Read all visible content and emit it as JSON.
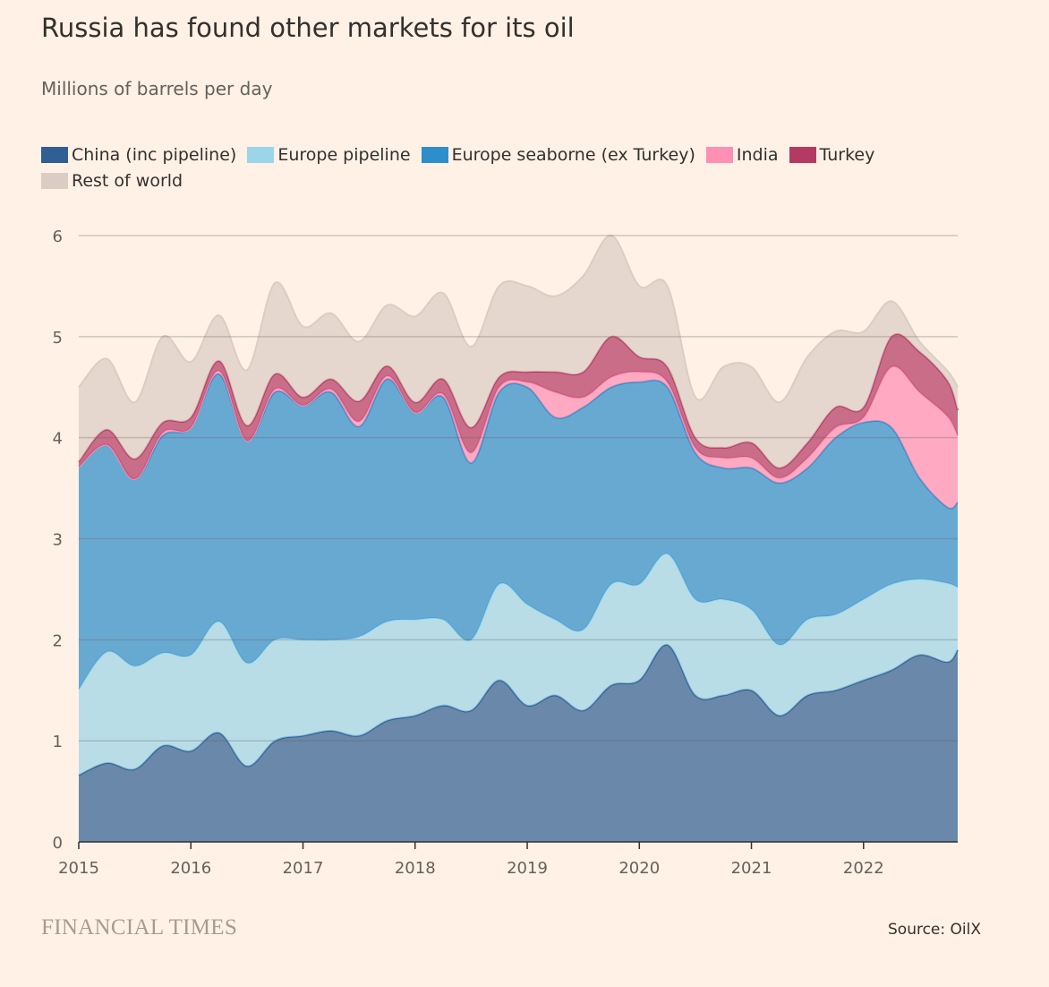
{
  "chart_data": {
    "type": "area",
    "stacked": true,
    "title": "Russia has found other markets for its oil",
    "subtitle": "Millions of barrels per day",
    "ylim": [
      0,
      6
    ],
    "y_ticks": [
      "0",
      "1",
      "2",
      "3",
      "4",
      "5",
      "6"
    ],
    "x_ticks": [
      "2015",
      "2016",
      "2017",
      "2018",
      "2019",
      "2020",
      "2021",
      "2022"
    ],
    "xlim": [
      2015.0,
      2022.84
    ],
    "x": [
      2015.0,
      2015.25,
      2015.5,
      2015.75,
      2016.0,
      2016.25,
      2016.5,
      2016.75,
      2017.0,
      2017.25,
      2017.5,
      2017.75,
      2018.0,
      2018.25,
      2018.5,
      2018.75,
      2019.0,
      2019.25,
      2019.5,
      2019.75,
      2020.0,
      2020.25,
      2020.5,
      2020.75,
      2021.0,
      2021.25,
      2021.5,
      2021.75,
      2022.0,
      2022.25,
      2022.5,
      2022.75,
      2022.84
    ],
    "series": [
      {
        "name": "China (inc pipeline)",
        "color": "#2f5f93",
        "values": [
          0.66,
          0.78,
          0.72,
          0.95,
          0.9,
          1.08,
          0.75,
          1.0,
          1.05,
          1.1,
          1.05,
          1.2,
          1.25,
          1.35,
          1.3,
          1.6,
          1.35,
          1.45,
          1.3,
          1.55,
          1.6,
          1.95,
          1.45,
          1.45,
          1.5,
          1.25,
          1.45,
          1.5,
          1.6,
          1.7,
          1.85,
          1.78,
          1.9
        ]
      },
      {
        "name": "Europe pipeline",
        "color": "#9dd5e8",
        "values": [
          0.85,
          1.1,
          1.02,
          0.92,
          0.95,
          1.1,
          1.02,
          1.0,
          0.95,
          0.9,
          0.98,
          0.98,
          0.95,
          0.85,
          0.7,
          0.95,
          1.0,
          0.75,
          0.8,
          1.0,
          0.95,
          0.9,
          0.95,
          0.95,
          0.8,
          0.7,
          0.75,
          0.75,
          0.8,
          0.85,
          0.75,
          0.78,
          0.62
        ]
      },
      {
        "name": "Europe seaborne (ex Turkey)",
        "color": "#2e8ecb",
        "values": [
          2.2,
          2.05,
          1.85,
          2.15,
          2.25,
          2.45,
          2.2,
          2.45,
          2.32,
          2.45,
          2.08,
          2.4,
          2.05,
          2.2,
          1.75,
          1.9,
          2.15,
          2.0,
          2.2,
          1.95,
          2.0,
          1.65,
          1.45,
          1.3,
          1.4,
          1.6,
          1.5,
          1.75,
          1.75,
          1.55,
          1.0,
          0.75,
          0.84
        ]
      },
      {
        "name": "India",
        "color": "#ff8fb4",
        "values": [
          0.0,
          0.0,
          0.0,
          0.03,
          0.0,
          0.03,
          0.0,
          0.03,
          0.0,
          0.03,
          0.05,
          0.03,
          0.0,
          0.03,
          0.1,
          0.05,
          0.05,
          0.25,
          0.1,
          0.1,
          0.1,
          0.05,
          0.05,
          0.1,
          0.1,
          0.05,
          0.1,
          0.1,
          0.05,
          0.6,
          0.85,
          0.9,
          0.66
        ]
      },
      {
        "name": "Turkey",
        "color": "#b43a64",
        "values": [
          0.05,
          0.15,
          0.2,
          0.1,
          0.1,
          0.1,
          0.15,
          0.15,
          0.08,
          0.1,
          0.2,
          0.1,
          0.1,
          0.15,
          0.25,
          0.1,
          0.1,
          0.2,
          0.25,
          0.4,
          0.15,
          0.15,
          0.1,
          0.1,
          0.15,
          0.1,
          0.15,
          0.2,
          0.1,
          0.3,
          0.4,
          0.35,
          0.25
        ]
      },
      {
        "name": "Rest of world",
        "color": "#dbcdc3",
        "values": [
          0.74,
          0.7,
          0.56,
          0.85,
          0.55,
          0.45,
          0.55,
          0.9,
          0.7,
          0.65,
          0.59,
          0.6,
          0.85,
          0.85,
          0.8,
          0.9,
          0.85,
          0.75,
          0.95,
          1.0,
          0.7,
          0.8,
          0.4,
          0.8,
          0.75,
          0.65,
          0.85,
          0.75,
          0.75,
          0.35,
          0.1,
          0.1,
          0.23
        ]
      }
    ]
  },
  "source": "Source: OilX",
  "brand": "FINANCIAL TIMES"
}
